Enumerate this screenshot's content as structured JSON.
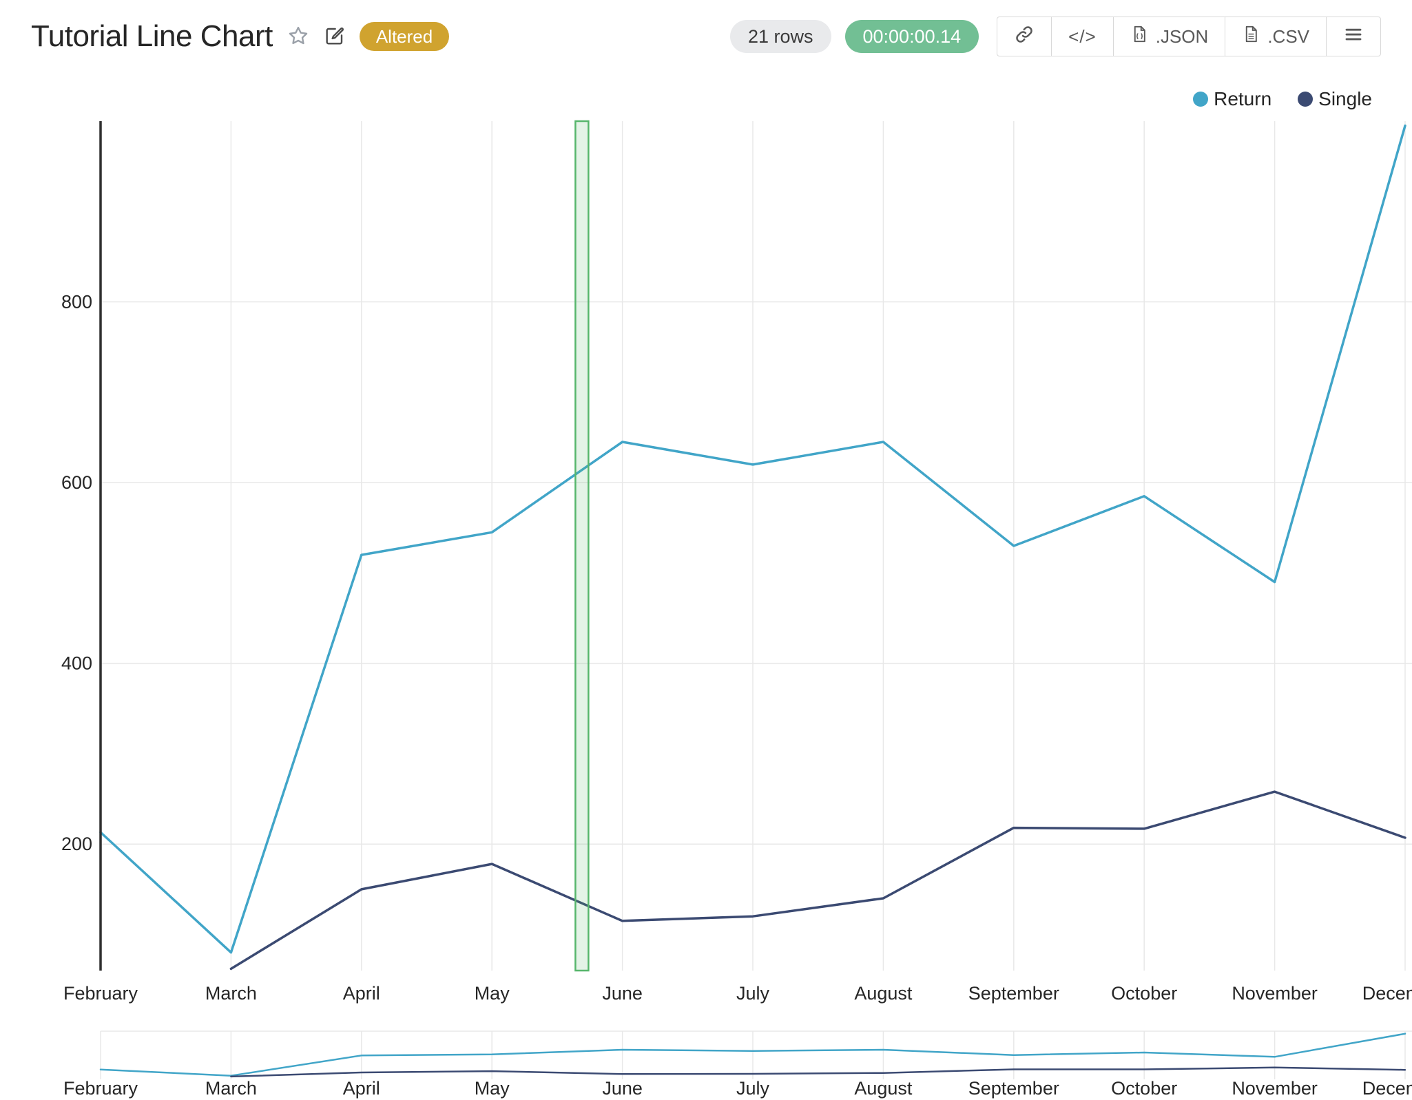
{
  "header": {
    "title": "Tutorial Line Chart",
    "altered_badge": "Altered",
    "rows_badge": "21 rows",
    "runtime_badge": "00:00:00.14",
    "buttons": {
      "embed_label": "</>",
      "json_label": ".JSON",
      "csv_label": ".CSV"
    }
  },
  "colors": {
    "grid": "#e8e8e8",
    "axis": "#2f2f2f",
    "text": "#262626",
    "badge_altered_bg": "#d0a32f",
    "badge_rows_bg": "#e9eaec",
    "badge_runtime_bg": "#72bf94",
    "selection_fill": "rgba(87,182,108,0.16)"
  },
  "chart_data": {
    "type": "line",
    "title": "Tutorial Line Chart",
    "x": [
      "February",
      "March",
      "April",
      "May",
      "June",
      "July",
      "August",
      "September",
      "October",
      "November",
      "December"
    ],
    "series": [
      {
        "name": "Return",
        "color": "#41a5c8",
        "values": [
          213,
          80,
          520,
          545,
          645,
          620,
          645,
          530,
          585,
          490,
          995
        ]
      },
      {
        "name": "Single",
        "color": "#3b4a72",
        "values": [
          null,
          62,
          150,
          178,
          115,
          120,
          140,
          218,
          217,
          258,
          207
        ]
      }
    ],
    "yticks": [
      200,
      400,
      600,
      800
    ],
    "ylim": [
      60,
      1000
    ],
    "grid": true,
    "legend_position": "top-right",
    "selection": {
      "from_index": 3.64,
      "to_index": 3.74,
      "color": "#57b66c"
    },
    "range_selector": true
  }
}
